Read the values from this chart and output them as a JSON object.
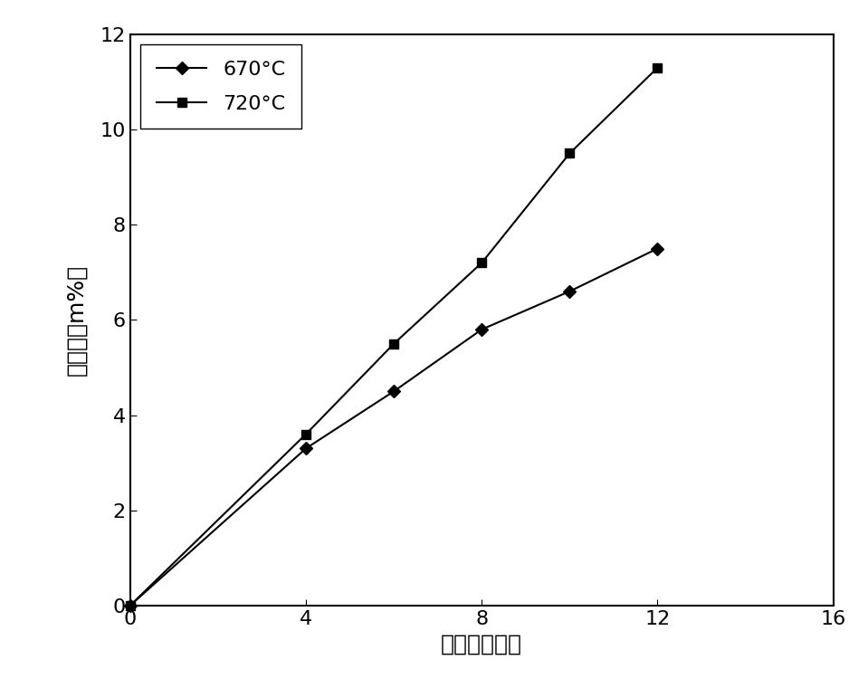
{
  "series_670": {
    "x": [
      0,
      4,
      6,
      8,
      10,
      12
    ],
    "y": [
      0,
      3.3,
      4.5,
      5.8,
      6.6,
      7.5
    ],
    "label": "670°C",
    "color": "#000000",
    "marker": "D",
    "markersize": 7
  },
  "series_720": {
    "x": [
      0,
      4,
      6,
      8,
      10,
      12
    ],
    "y": [
      0,
      3.6,
      5.5,
      7.2,
      9.5,
      11.3
    ],
    "label": "720°C",
    "color": "#000000",
    "marker": "s",
    "markersize": 7
  },
  "xlabel": "时间（小时）",
  "ylabel": "覆炭量（m%）",
  "xlim": [
    0,
    16
  ],
  "ylim": [
    0,
    12
  ],
  "xticks": [
    0,
    4,
    8,
    12,
    16
  ],
  "yticks": [
    0,
    2,
    4,
    6,
    8,
    10,
    12
  ],
  "background_color": "#ffffff",
  "linewidth": 1.5,
  "xlabel_fontsize": 18,
  "ylabel_fontsize": 18,
  "tick_fontsize": 16,
  "legend_fontsize": 16
}
